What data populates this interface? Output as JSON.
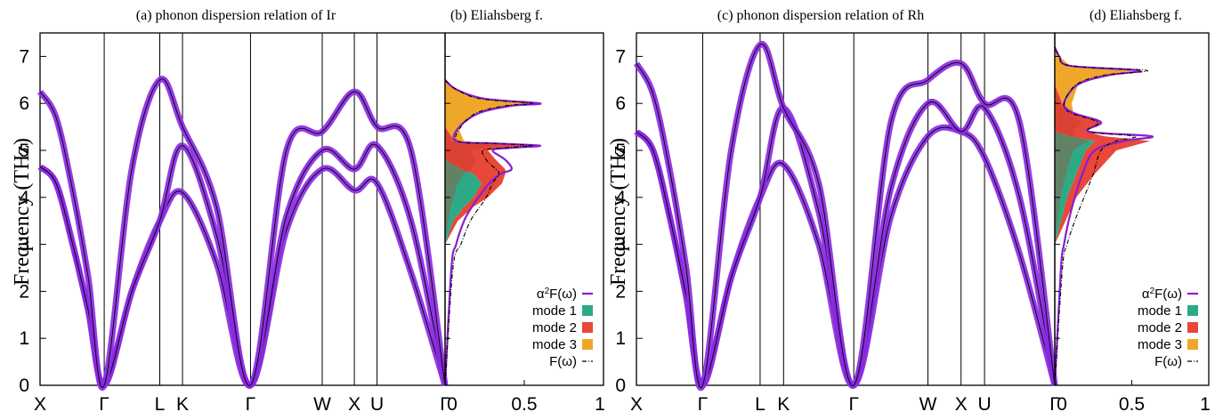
{
  "figure": {
    "y_axis_label": "Frequency (THz)",
    "colors": {
      "band_width": "#8a2be2",
      "band_line": "#000000",
      "a2F": "#8a1fd1",
      "mode1": "#2ea985",
      "mode2": "#e8483a",
      "mode3": "#efa72a",
      "F": "#000000"
    }
  },
  "chart_data": [
    {
      "type": "line",
      "panel": "a",
      "title": "(a) phonon dispersion relation of Ir",
      "ylabel": "Frequency (THz)",
      "ylim": [
        0,
        7.5
      ],
      "yticks": [
        0,
        1,
        2,
        3,
        4,
        5,
        6,
        7
      ],
      "high_symmetry_points": [
        {
          "label": "X",
          "pos": 0.0
        },
        {
          "label": "Γ",
          "pos": 1.0
        },
        {
          "label": "L",
          "pos": 1.866
        },
        {
          "label": "K",
          "pos": 2.22
        },
        {
          "label": "Γ",
          "pos": 3.28
        },
        {
          "label": "W",
          "pos": 4.398
        },
        {
          "label": "X",
          "pos": 4.898
        },
        {
          "label": "U",
          "pos": 5.252
        },
        {
          "label": "Γ",
          "pos": 6.312
        }
      ],
      "series": [
        {
          "branch": 1,
          "x": [
            0,
            0.25,
            0.5,
            0.75,
            1.0,
            1.43,
            1.866,
            2.22,
            2.75,
            3.28,
            3.84,
            4.398,
            4.898,
            5.252,
            5.78,
            6.312
          ],
          "y": [
            4.65,
            4.3,
            3.05,
            1.6,
            0.0,
            2.0,
            3.5,
            4.1,
            2.6,
            0.0,
            3.3,
            4.6,
            4.15,
            4.3,
            2.4,
            0.0
          ]
        },
        {
          "branch": 2,
          "x": [
            0,
            0.25,
            0.5,
            0.75,
            1.0,
            1.43,
            1.866,
            2.22,
            2.75,
            3.28,
            3.84,
            4.398,
            4.898,
            5.252,
            5.78,
            6.312
          ],
          "y": [
            4.65,
            4.3,
            3.05,
            1.6,
            0.0,
            2.0,
            3.5,
            5.1,
            3.2,
            0.0,
            3.6,
            5.0,
            4.6,
            5.1,
            3.5,
            0.0
          ]
        },
        {
          "branch": 3,
          "x": [
            0,
            0.25,
            0.5,
            0.75,
            1.0,
            1.43,
            1.866,
            2.22,
            2.75,
            3.28,
            3.84,
            4.398,
            4.898,
            5.252,
            5.78,
            6.312
          ],
          "y": [
            6.25,
            5.7,
            4.2,
            2.3,
            0.0,
            4.6,
            6.5,
            5.5,
            3.8,
            0.0,
            5.0,
            5.4,
            6.25,
            5.5,
            5.0,
            0.0
          ]
        }
      ]
    },
    {
      "type": "area",
      "panel": "b",
      "title": "(b) Eliahsberg f.",
      "xlim": [
        0,
        1
      ],
      "xticks": [
        0,
        0.5,
        1
      ],
      "ylim": [
        0,
        7.5
      ],
      "legend": [
        "α²F(ω)",
        "mode 1",
        "mode 2",
        "mode 3",
        "F(ω)"
      ],
      "legend_position": "bottom-right",
      "y": [
        0.0,
        2.5,
        3.0,
        3.5,
        3.8,
        4.0,
        4.3,
        4.5,
        4.6,
        4.8,
        5.0,
        5.05,
        5.1,
        5.15,
        5.2,
        5.5,
        5.8,
        5.95,
        6.0,
        6.1,
        6.3,
        6.5
      ],
      "series": [
        {
          "name": "α²F(ω)",
          "values": [
            0.0,
            0.04,
            0.07,
            0.12,
            0.17,
            0.21,
            0.28,
            0.35,
            0.42,
            0.38,
            0.3,
            0.4,
            0.6,
            0.3,
            0.07,
            0.09,
            0.22,
            0.42,
            0.6,
            0.25,
            0.07,
            0.0
          ]
        },
        {
          "name": "mode 1",
          "values": [
            0.0,
            0.0,
            0.0,
            0.05,
            0.12,
            0.18,
            0.23,
            0.18,
            0.1,
            0.0,
            0.0,
            0.0,
            0.0,
            0.0,
            0.0,
            0.0,
            0.0,
            0.0,
            0.0,
            0.0,
            0.0,
            0.0
          ]
        },
        {
          "name": "mode 2",
          "values": [
            0.0,
            0.0,
            0.0,
            0.03,
            0.06,
            0.09,
            0.13,
            0.2,
            0.28,
            0.32,
            0.27,
            0.38,
            0.58,
            0.28,
            0.06,
            0.0,
            0.0,
            0.0,
            0.0,
            0.0,
            0.0,
            0.0
          ]
        },
        {
          "name": "mode 3",
          "values": [
            0.0,
            0.0,
            0.0,
            0.0,
            0.0,
            0.0,
            0.0,
            0.0,
            0.0,
            0.0,
            0.0,
            0.0,
            0.0,
            0.0,
            0.06,
            0.08,
            0.2,
            0.4,
            0.58,
            0.24,
            0.07,
            0.0
          ]
        },
        {
          "name": "F(ω)",
          "values": [
            0.0,
            0.05,
            0.1,
            0.16,
            0.22,
            0.26,
            0.3,
            0.34,
            0.32,
            0.26,
            0.24,
            0.35,
            0.55,
            0.3,
            0.08,
            0.1,
            0.2,
            0.38,
            0.55,
            0.22,
            0.07,
            0.0
          ]
        }
      ]
    },
    {
      "type": "line",
      "panel": "c",
      "title": "(c) phonon dispersion relation of Rh",
      "ylabel": "Frequency (THz)",
      "ylim": [
        0,
        7.5
      ],
      "yticks": [
        0,
        1,
        2,
        3,
        4,
        5,
        6,
        7
      ],
      "high_symmetry_points": [
        {
          "label": "X",
          "pos": 0.0
        },
        {
          "label": "Γ",
          "pos": 1.0
        },
        {
          "label": "L",
          "pos": 1.866
        },
        {
          "label": "K",
          "pos": 2.22
        },
        {
          "label": "Γ",
          "pos": 3.28
        },
        {
          "label": "W",
          "pos": 4.398
        },
        {
          "label": "X",
          "pos": 4.898
        },
        {
          "label": "U",
          "pos": 5.252
        },
        {
          "label": "Γ",
          "pos": 6.312
        }
      ],
      "series": [
        {
          "branch": 1,
          "x": [
            0,
            0.25,
            0.5,
            0.75,
            1.0,
            1.43,
            1.866,
            2.22,
            2.75,
            3.28,
            3.84,
            4.398,
            4.898,
            5.252,
            5.78,
            6.312
          ],
          "y": [
            5.4,
            5.0,
            3.6,
            1.9,
            0.0,
            2.3,
            4.0,
            4.7,
            3.0,
            0.0,
            3.6,
            5.3,
            5.4,
            4.85,
            2.8,
            0.0
          ]
        },
        {
          "branch": 2,
          "x": [
            0,
            0.25,
            0.5,
            0.75,
            1.0,
            1.43,
            1.866,
            2.22,
            2.75,
            3.28,
            3.84,
            4.398,
            4.898,
            5.252,
            5.78,
            6.312
          ],
          "y": [
            5.4,
            5.0,
            3.6,
            1.9,
            0.0,
            2.3,
            4.0,
            5.9,
            3.7,
            0.0,
            4.2,
            6.0,
            5.4,
            5.9,
            4.0,
            0.0
          ]
        },
        {
          "branch": 3,
          "x": [
            0,
            0.25,
            0.5,
            0.75,
            1.0,
            1.43,
            1.866,
            2.22,
            2.75,
            3.28,
            3.84,
            4.398,
            4.898,
            5.252,
            5.78,
            6.312
          ],
          "y": [
            6.85,
            6.2,
            4.6,
            2.5,
            0.0,
            5.0,
            7.25,
            5.9,
            4.3,
            0.0,
            5.6,
            6.5,
            6.85,
            6.0,
            5.6,
            0.0
          ]
        }
      ]
    },
    {
      "type": "area",
      "panel": "d",
      "title": "(d) Eliahsberg f.",
      "xlim": [
        0,
        1
      ],
      "xticks": [
        0,
        0.5,
        1
      ],
      "ylim": [
        0,
        7.5
      ],
      "legend": [
        "α²F(ω)",
        "mode 1",
        "mode 2",
        "mode 3",
        "F(ω)"
      ],
      "legend_position": "bottom-right",
      "y": [
        0.0,
        2.5,
        3.0,
        3.5,
        4.0,
        4.5,
        5.0,
        5.2,
        5.3,
        5.4,
        5.6,
        5.8,
        6.0,
        6.4,
        6.6,
        6.7,
        6.8,
        7.0,
        7.2
      ],
      "series": [
        {
          "name": "α²F(ω)",
          "values": [
            0.0,
            0.04,
            0.06,
            0.09,
            0.13,
            0.18,
            0.26,
            0.45,
            0.63,
            0.22,
            0.3,
            0.12,
            0.06,
            0.15,
            0.35,
            0.55,
            0.1,
            0.03,
            0.0
          ]
        },
        {
          "name": "mode 1",
          "values": [
            0.0,
            0.0,
            0.0,
            0.04,
            0.08,
            0.14,
            0.2,
            0.26,
            0.1,
            0.0,
            0.0,
            0.0,
            0.0,
            0.0,
            0.0,
            0.0,
            0.0,
            0.0,
            0.0
          ]
        },
        {
          "name": "mode 2",
          "values": [
            0.0,
            0.0,
            0.0,
            0.03,
            0.06,
            0.12,
            0.2,
            0.36,
            0.22,
            0.2,
            0.3,
            0.12,
            0.05,
            0.0,
            0.0,
            0.0,
            0.0,
            0.0,
            0.0
          ]
        },
        {
          "name": "mode 3",
          "values": [
            0.0,
            0.0,
            0.0,
            0.0,
            0.0,
            0.0,
            0.0,
            0.0,
            0.0,
            0.0,
            0.0,
            0.0,
            0.06,
            0.15,
            0.33,
            0.52,
            0.1,
            0.03,
            0.0
          ]
        },
        {
          "name": "F(ω)",
          "values": [
            0.0,
            0.05,
            0.08,
            0.13,
            0.19,
            0.25,
            0.3,
            0.4,
            0.52,
            0.22,
            0.28,
            0.1,
            0.06,
            0.14,
            0.32,
            0.6,
            0.1,
            0.03,
            0.0
          ]
        }
      ]
    }
  ]
}
